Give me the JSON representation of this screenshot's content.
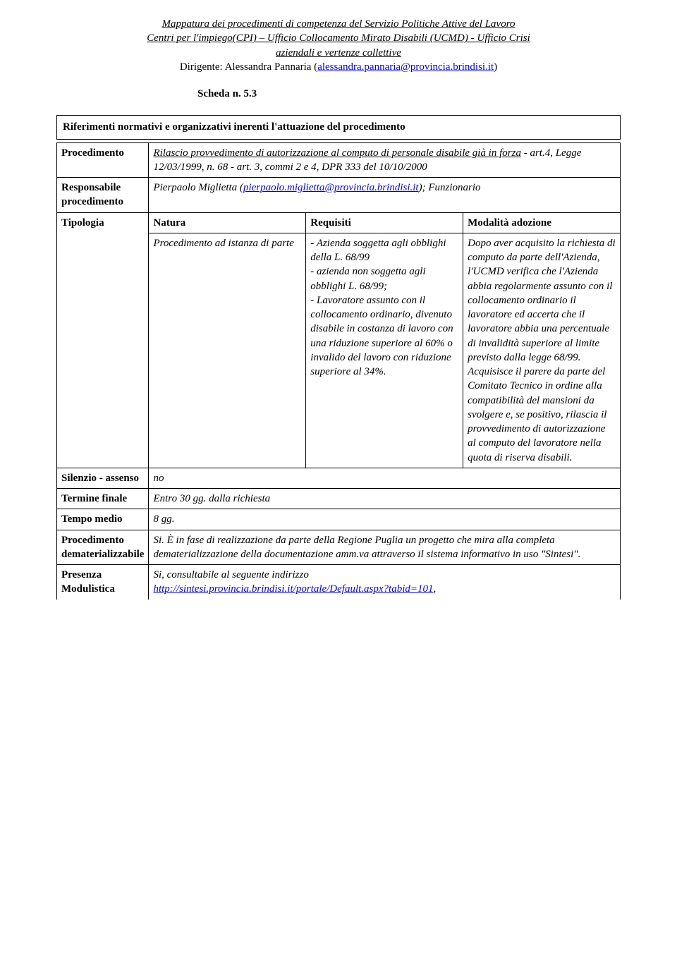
{
  "header": {
    "line1": "Mappatura dei procedimenti di competenza del Servizio Politiche Attive del Lavoro",
    "line2": "Centri per l'impiego(CPI) – Ufficio Collocamento Mirato Disabili (UCMD) - Ufficio Crisi",
    "line3": "aziendali e vertenze collettive",
    "line4_prefix": "Dirigente: Alessandra Pannaria (",
    "line4_email": "alessandra.pannaria@provincia.brindisi.it",
    "line4_suffix": ")"
  },
  "scheda": "Scheda n. 5.3",
  "section_title": "Riferimenti normativi e organizzativi inerenti l'attuazione del procedimento",
  "rows": {
    "procedimento": {
      "label": "Procedimento",
      "value_prefix": "Rilascio provvedimento di autorizzazione al computo di personale disabile già in forza",
      "value_rest": " - art.4, Legge 12/03/1999, n. 68 - art. 3, commi 2 e 4, DPR 333 del 10/10/2000"
    },
    "responsabile": {
      "label": "Responsabile procedimento",
      "value_prefix": "Pierpaolo Miglietta (",
      "value_email": "pierpaolo.miglietta@provincia.brindisi.it",
      "value_mid": "); Funzionario"
    },
    "tipologia": {
      "label": "Tipologia",
      "col1": "Natura",
      "col2": "Requisiti",
      "col3": "Modalità adozione",
      "row_col1": "Procedimento ad istanza di parte",
      "row_col2": "- Azienda soggetta agli obblighi della L. 68/99\n- azienda  non soggetta agli obblighi L. 68/99;\n- Lavoratore assunto con il collocamento ordinario, divenuto disabile in costanza di lavoro con una riduzione superiore al 60% o invalido del lavoro con riduzione superiore al 34%.",
      "row_col3": "Dopo aver acquisito la richiesta di computo da parte dell'Azienda, l'UCMD verifica che l'Azienda abbia regolarmente assunto con il collocamento ordinario il lavoratore ed accerta che il lavoratore abbia una percentuale di invalidità superiore al limite previsto dalla legge 68/99. Acquisisce il parere da parte del Comitato Tecnico in ordine alla compatibilità del mansioni da svolgere e, se positivo, rilascia il provvedimento di autorizzazione al computo del lavoratore nella quota di riserva disabili."
    },
    "silenzio": {
      "label": "Silenzio - assenso",
      "value": "no"
    },
    "termine": {
      "label": "Termine finale",
      "value": "Entro 30 gg. dalla richiesta"
    },
    "tempo": {
      "label": "Tempo medio",
      "value": "8 gg."
    },
    "demat": {
      "label": "Procedimento dematerializzabile",
      "value": "Si. È in fase di realizzazione da parte della Regione Puglia un progetto che mira alla completa dematerializzazione della documentazione amm.va attraverso il sistema informativo in uso \"Sintesi\"."
    },
    "modulistica": {
      "label": "Presenza  Modulistica",
      "value_text": "Si, consultabile al seguente indirizzo",
      "value_link": "http://sintesi.provincia.brindisi.it/portale/Default.aspx?tabid=101",
      "value_trail": ","
    }
  }
}
